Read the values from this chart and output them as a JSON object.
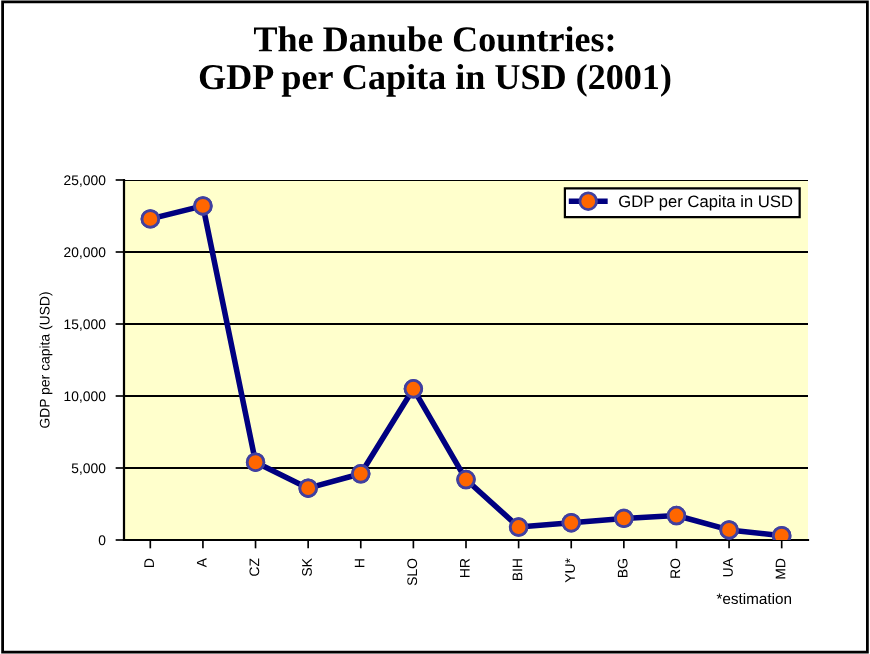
{
  "chart_data": {
    "type": "line",
    "title": "The Danube Countries:\nGDP per Capita in USD (2001)",
    "ylabel": "GDP per capita (USD)",
    "categories": [
      "D",
      "A",
      "CZ",
      "SK",
      "H",
      "SLO",
      "HR",
      "BIH",
      "YU*",
      "BG",
      "RO",
      "UA",
      "MD"
    ],
    "series": [
      {
        "name": "GDP per Capita in USD",
        "color": "#000080",
        "colors": [
          "#ff6600",
          "#ff6600",
          "#ff6600",
          "#ff6600",
          "#ff6600",
          "#ff6600",
          "#ff6600",
          "#ff6600",
          "#ff6600",
          "#ff6600",
          "#ff6600",
          "#ff6600",
          "#ff6600"
        ],
        "values": [
          22300,
          23200,
          5400,
          3600,
          4600,
          10500,
          4200,
          900,
          1200,
          1500,
          1700,
          700,
          300
        ]
      }
    ],
    "ylim": [
      0,
      25000
    ],
    "yticks": [
      {
        "value": 0,
        "label": "0"
      },
      {
        "value": 5000,
        "label": "5,000"
      },
      {
        "value": 10000,
        "label": "10,000"
      },
      {
        "value": 15000,
        "label": "15,000"
      },
      {
        "value": 20000,
        "label": "20,000"
      },
      {
        "value": 25000,
        "label": "25,000"
      }
    ],
    "grid": "y",
    "legend": "top right",
    "marker": "circle",
    "line_style": "solid",
    "annotations": [
      "*estimation"
    ]
  }
}
